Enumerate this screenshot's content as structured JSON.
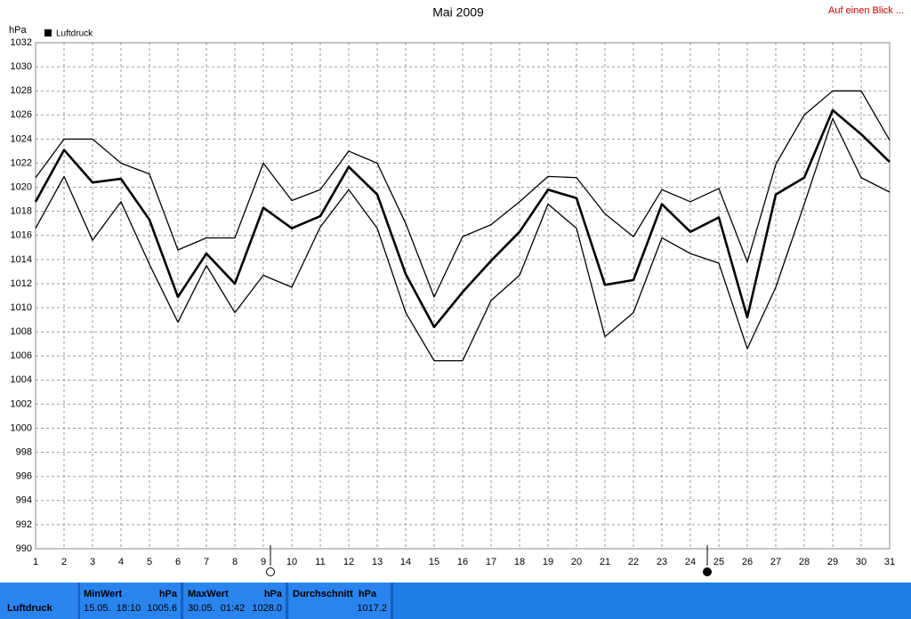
{
  "chart_data": {
    "type": "line",
    "title": "Mai 2009",
    "y_label": "hPa",
    "link": "Auf einen Blick ...",
    "x": [
      1,
      2,
      3,
      4,
      5,
      6,
      7,
      8,
      9,
      10,
      11,
      12,
      13,
      14,
      15,
      16,
      17,
      18,
      19,
      20,
      21,
      22,
      23,
      24,
      25,
      26,
      27,
      28,
      29,
      30,
      31
    ],
    "xlim": [
      1,
      31
    ],
    "xticks": [
      1,
      2,
      3,
      4,
      5,
      6,
      7,
      8,
      9,
      10,
      11,
      12,
      13,
      14,
      15,
      16,
      17,
      18,
      19,
      20,
      21,
      22,
      23,
      24,
      25,
      26,
      27,
      28,
      29,
      30,
      31
    ],
    "ylim": [
      990,
      1032
    ],
    "yticks": [
      990,
      992,
      994,
      996,
      998,
      1000,
      1002,
      1004,
      1006,
      1008,
      1010,
      1012,
      1014,
      1016,
      1018,
      1020,
      1022,
      1024,
      1026,
      1028,
      1030,
      1032
    ],
    "grid": true,
    "series": [
      {
        "color": "#000000",
        "width": 1.3,
        "values": [
          1020.8,
          1024,
          1024,
          1022,
          1021.1,
          1014.8,
          1015.8,
          1015.8,
          1022,
          1018.9,
          1019.8,
          1023,
          1022,
          1017,
          1010.9,
          1015.9,
          1016.9,
          1018.8,
          1020.9,
          1020.8,
          1017.8,
          1015.9,
          1019.8,
          1018.8,
          1019.9,
          1013.8,
          1021.9,
          1026,
          1028,
          1028,
          1023.9
        ]
      },
      {
        "name": "Luftdruck",
        "color": "#000000",
        "width": 2.6,
        "values": [
          1018.8,
          1023.1,
          1020.4,
          1020.7,
          1017.3,
          1010.9,
          1014.5,
          1012,
          1018.3,
          1016.6,
          1017.6,
          1021.7,
          1019.4,
          1012.8,
          1008.4,
          1011.3,
          1013.9,
          1016.3,
          1019.8,
          1019.1,
          1011.9,
          1012.3,
          1018.6,
          1016.3,
          1017.5,
          1009.2,
          1019.4,
          1020.8,
          1026.4,
          1024.4,
          1022.1
        ]
      },
      {
        "color": "#000000",
        "width": 1.3,
        "values": [
          1016.6,
          1020.9,
          1015.6,
          1018.8,
          1013.6,
          1008.8,
          1013.5,
          1009.6,
          1012.7,
          1011.7,
          1016.7,
          1019.8,
          1016.6,
          1009.6,
          1005.6,
          1005.6,
          1010.6,
          1012.7,
          1018.6,
          1016.6,
          1007.6,
          1009.6,
          1015.8,
          1014.5,
          1013.7,
          1006.6,
          1011.7,
          1018.6,
          1025.7,
          1020.8,
          1019.6
        ]
      }
    ]
  },
  "summary": {
    "label": "Luftdruck",
    "cells": [
      {
        "title": "MinWert",
        "unit": "hPa",
        "when": "15.05.  18:10",
        "value": "1005.6"
      },
      {
        "title": "MaxWert",
        "unit": "hPa",
        "when": "30.05.  01:42",
        "value": "1028.0"
      },
      {
        "title": "Durchschnitt  hPa",
        "value": "1017.2"
      }
    ]
  }
}
